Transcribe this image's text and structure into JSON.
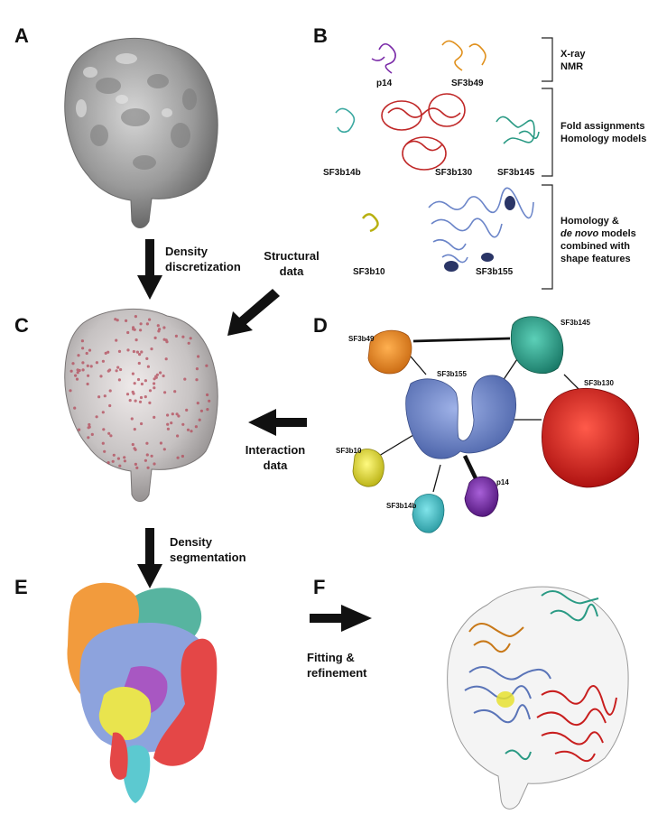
{
  "panels": {
    "A": "A",
    "B": "B",
    "C": "C",
    "D": "D",
    "E": "E",
    "F": "F"
  },
  "arrows": {
    "density_discretization": [
      "Density",
      "discretization"
    ],
    "structural_data": [
      "Structural",
      "data"
    ],
    "interaction_data": [
      "Interaction",
      "data"
    ],
    "density_segmentation": [
      "Density",
      "segmentation"
    ],
    "fitting_refinement": [
      "Fitting &",
      "refinement"
    ]
  },
  "panel_b": {
    "proteins": {
      "p14": "p14",
      "SF3b49": "SF3b49",
      "SF3b14b": "SF3b14b",
      "SF3b130": "SF3b130",
      "SF3b145": "SF3b145",
      "SF3b10": "SF3b10",
      "SF3b155": "SF3b155"
    },
    "brackets": {
      "xray": [
        "X-ray",
        "NMR"
      ],
      "fold": [
        "Fold assignments",
        "Homology models"
      ],
      "homology": {
        "line1": "Homology &",
        "line2_italic": "de novo",
        "line2_rest": " models",
        "line3": "combined with",
        "line4": "shape features"
      }
    }
  },
  "panel_d": {
    "labels": {
      "SF3b49": "SF3b49",
      "SF3b145": "SF3b145",
      "SF3b155": "SF3b155",
      "SF3b130": "SF3b130",
      "SF3b10": "SF3b10",
      "p14": "p14",
      "SF3b14b": "SF3b14b"
    }
  },
  "colors": {
    "density_gray": "#9a9a9a",
    "sf3b49": "#f08a1c",
    "sf3b145": "#2aa08c",
    "sf3b155": "#6a84c8",
    "sf3b130": "#d82020",
    "sf3b10": "#e8e030",
    "p14": "#7a2aa8",
    "sf3b14b": "#40c0c8",
    "sf3b155_dark": "#2a3566"
  }
}
